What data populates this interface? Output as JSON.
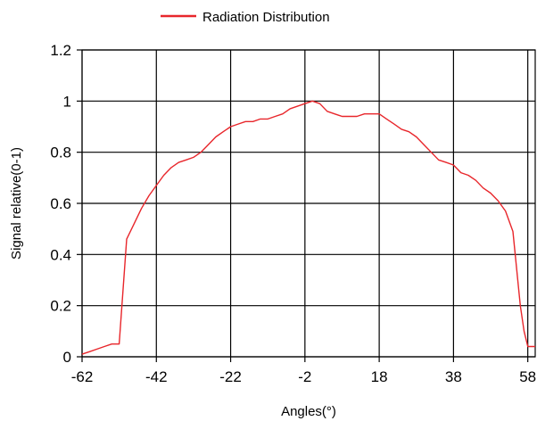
{
  "chart_data": {
    "type": "line",
    "xlabel": "Angles(°)",
    "ylabel": "Signal relative(0-1)",
    "xlim": [
      -62,
      60
    ],
    "ylim": [
      0,
      1.2
    ],
    "x_ticks": [
      "-62",
      "-42",
      "-22",
      "-2",
      "18",
      "38",
      "58"
    ],
    "y_ticks": [
      "0",
      "0.2",
      "0.4",
      "0.6",
      "0.8",
      "1",
      "1.2"
    ],
    "grid": true,
    "legend_position": "top-center",
    "series": [
      {
        "name": "Radiation Distribution",
        "color": "#e8262b",
        "x": [
          -62,
          -60,
          -58,
          -56,
          -54,
          -52,
          -50,
          -48,
          -46,
          -44,
          -42,
          -40,
          -38,
          -36,
          -34,
          -32,
          -30,
          -28,
          -26,
          -24,
          -22,
          -20,
          -18,
          -16,
          -14,
          -12,
          -10,
          -8,
          -6,
          -4,
          -2,
          0,
          2,
          4,
          6,
          8,
          10,
          12,
          14,
          16,
          18,
          20,
          22,
          24,
          26,
          28,
          30,
          32,
          34,
          36,
          38,
          40,
          42,
          44,
          46,
          48,
          50,
          52,
          54,
          56,
          57,
          58,
          60
        ],
        "y": [
          0.01,
          0.02,
          0.03,
          0.04,
          0.05,
          0.05,
          0.46,
          0.52,
          0.58,
          0.63,
          0.67,
          0.71,
          0.74,
          0.76,
          0.77,
          0.78,
          0.8,
          0.83,
          0.86,
          0.88,
          0.9,
          0.91,
          0.92,
          0.92,
          0.93,
          0.93,
          0.94,
          0.95,
          0.97,
          0.98,
          0.99,
          1.0,
          0.99,
          0.96,
          0.95,
          0.94,
          0.94,
          0.94,
          0.95,
          0.95,
          0.95,
          0.93,
          0.91,
          0.89,
          0.88,
          0.86,
          0.83,
          0.8,
          0.77,
          0.76,
          0.75,
          0.72,
          0.71,
          0.69,
          0.66,
          0.64,
          0.61,
          0.57,
          0.49,
          0.2,
          0.1,
          0.04,
          0.04
        ]
      }
    ]
  }
}
